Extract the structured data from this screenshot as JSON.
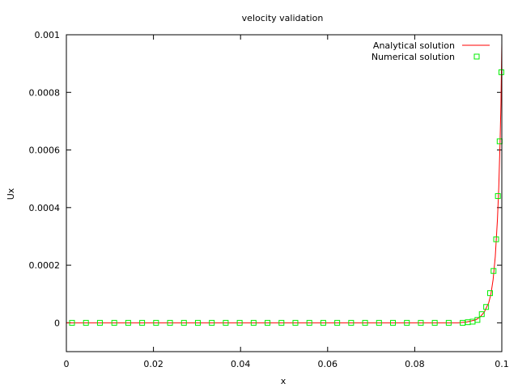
{
  "chart_data": {
    "type": "line",
    "title": "velocity validation",
    "xlabel": "x",
    "ylabel": "Ux",
    "xlim": [
      0,
      0.1
    ],
    "ylim": [
      -0.0001,
      0.001
    ],
    "grid": false,
    "legend_position": "top-right",
    "x_ticks": [
      "0",
      "0.02",
      "0.04",
      "0.06",
      "0.08",
      "0.1"
    ],
    "x_tick_values": [
      0,
      0.02,
      0.04,
      0.06,
      0.08,
      0.1
    ],
    "y_ticks": [
      "0",
      "0.0002",
      "0.0004",
      "0.0006",
      "0.0008",
      "0.001"
    ],
    "y_tick_values": [
      0,
      0.0002,
      0.0004,
      0.0006,
      0.0008,
      0.001
    ],
    "series": [
      {
        "name": "Analytical solution",
        "style": "line",
        "color": "#ff0000",
        "x": [
          0,
          0.09,
          0.092,
          0.094,
          0.095,
          0.096,
          0.097,
          0.0975,
          0.098,
          0.0985,
          0.099,
          0.0993,
          0.0996,
          0.0998,
          0.1
        ],
        "y": [
          0,
          0,
          3e-06,
          1e-05,
          2e-05,
          3.8e-05,
          7e-05,
          0.0001,
          0.00015,
          0.00023,
          0.00036,
          0.00047,
          0.00063,
          0.00076,
          0.00097
        ]
      },
      {
        "name": "Numerical solution",
        "style": "markers",
        "marker": "square",
        "color": "#00ee00",
        "x": [
          0.0013,
          0.0045,
          0.0077,
          0.011,
          0.0142,
          0.0174,
          0.0206,
          0.0238,
          0.027,
          0.0302,
          0.0334,
          0.0366,
          0.0398,
          0.043,
          0.0462,
          0.0494,
          0.0526,
          0.0558,
          0.059,
          0.0622,
          0.0654,
          0.0686,
          0.0718,
          0.075,
          0.0782,
          0.0814,
          0.0846,
          0.0878,
          0.091,
          0.0922,
          0.0933,
          0.0944,
          0.0954,
          0.0964,
          0.0973,
          0.0981,
          0.0987,
          0.0991,
          0.0995,
          0.0999
        ],
        "y": [
          0,
          0,
          0,
          0,
          0,
          0,
          0,
          0,
          0,
          0,
          0,
          0,
          0,
          0,
          0,
          0,
          0,
          0,
          0,
          0,
          0,
          0,
          0,
          0,
          0,
          0,
          0,
          0,
          0,
          2e-06,
          4e-06,
          1e-05,
          3e-05,
          5.5e-05,
          0.000103,
          0.00018,
          0.00029,
          0.00044,
          0.00063,
          0.00087
        ]
      }
    ]
  }
}
